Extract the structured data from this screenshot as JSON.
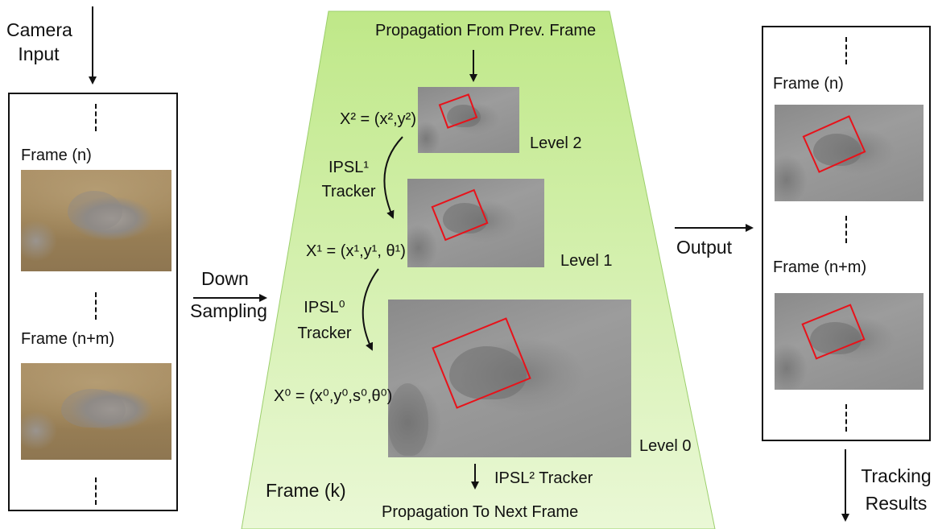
{
  "input": {
    "camera_input": [
      "Camera",
      "Input"
    ],
    "frame_n": "Frame (n)",
    "frame_nm": "Frame (n+m)"
  },
  "down_sampling": [
    "Down",
    "Sampling"
  ],
  "pyramid": {
    "propagation_from": "Propagation From Prev. Frame",
    "x2_label": "X² = (x²,y²)",
    "level2": "Level 2",
    "ipsl1_tracker": [
      "IPSL¹",
      "Tracker"
    ],
    "x1_label": "X¹ = (x¹,y¹, θ¹)",
    "level1": "Level 1",
    "ipsl0_tracker": [
      "IPSL⁰",
      "Tracker"
    ],
    "x0_label": "X⁰ = (x⁰,y⁰,s⁰,θ⁰)",
    "level0": "Level 0",
    "frame_k": "Frame (k)",
    "ipsl2_tracker": "IPSL² Tracker",
    "propagation_to": "Propagation To Next Frame",
    "fill_color": "#c6ec9a"
  },
  "output": {
    "label": "Output",
    "frame_n": "Frame (n)",
    "frame_nm": "Frame (n+m)",
    "tracking_results": [
      "Tracking",
      "Results"
    ]
  },
  "colors": {
    "box": "#e8121a",
    "ink": "#111111"
  }
}
